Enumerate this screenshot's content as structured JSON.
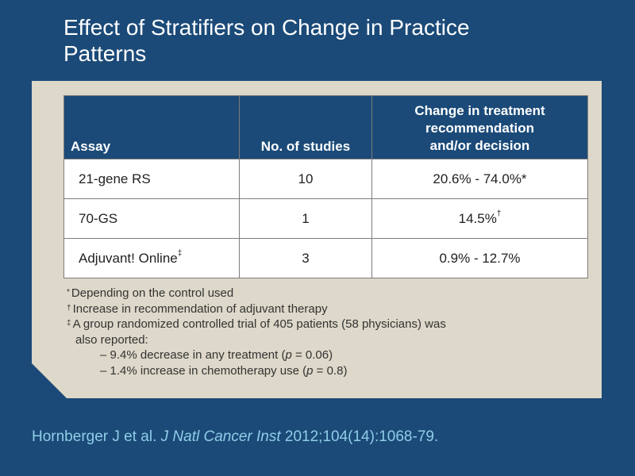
{
  "slide": {
    "title_line1": "Effect of Stratifiers on Change in Practice",
    "title_line2": "Patterns"
  },
  "table": {
    "headers": {
      "assay": "Assay",
      "studies": "No. of studies",
      "change_line1": "Change in treatment",
      "change_line2": "recommendation",
      "change_line3": "and/or decision"
    },
    "rows": [
      {
        "assay": "21-gene RS",
        "assay_mark": "",
        "studies": "10",
        "change": "20.6% - 74.0%*",
        "change_mark": ""
      },
      {
        "assay": "70-GS",
        "assay_mark": "",
        "studies": "1",
        "change": "14.5%",
        "change_mark": "†"
      },
      {
        "assay": "Adjuvant! Online",
        "assay_mark": "‡",
        "studies": "3",
        "change": "0.9% - 12.7%",
        "change_mark": ""
      }
    ]
  },
  "footnotes": {
    "n1_mark": "*",
    "n1_text": "Depending on the control used",
    "n2_mark": "†",
    "n2_text": "Increase in recommendation of adjuvant therapy",
    "n3_mark": "‡",
    "n3_text": "A group randomized controlled trial of 405 patients (58 physicians) was",
    "n3_cont": "also reported:",
    "sub1_pre": "– 9.4% decrease in any treatment (",
    "sub1_p": "p",
    "sub1_post": " = 0.06)",
    "sub2_pre": "– 1.4% increase in chemotherapy use (",
    "sub2_p": "p",
    "sub2_post": " = 0.8)"
  },
  "citation": {
    "authors": "Hornberger J et al. ",
    "journal": "J Natl Cancer Inst",
    "details": " 2012;104(14):1068-79."
  },
  "colors": {
    "background": "#1b4a78",
    "panel": "#ddd8c9",
    "table_header": "#1b4a78",
    "citation": "#8fcde6"
  }
}
